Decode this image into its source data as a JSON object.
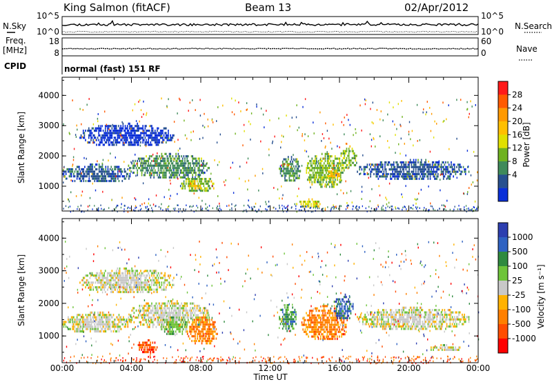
{
  "header": {
    "station": "King Salmon (fitACF)",
    "beam": "Beam 13",
    "date": "02/Apr/2012"
  },
  "left_labels": {
    "nsky": "N.Sky",
    "freq_line1": "Freq.",
    "freq_line2": "[MHz]",
    "cpid": "CPID"
  },
  "right_labels": {
    "nsearch": "N.Search",
    "nave": "Nave"
  },
  "cpid_text": "normal (fast) 151 RF",
  "colors": {
    "scatter_blue": "#1f3fd0",
    "trace": "#000000"
  },
  "chart_data": [
    {
      "type": "line",
      "name": "noise-panel",
      "left_ticks": [
        "10^5",
        "10^0"
      ],
      "right_ticks": [
        "10^5",
        "10^0"
      ],
      "x_range": [
        0,
        24
      ],
      "sky_level": 0.55,
      "search_level": 0.15
    },
    {
      "type": "line",
      "name": "frequency-panel",
      "left_ticks": [
        "18",
        "8"
      ],
      "right_ticks": [
        "60",
        "0"
      ],
      "x_range": [
        0,
        24
      ],
      "freq_level": 0.4
    },
    {
      "type": "heatmap",
      "name": "power-panel",
      "ylabel": "Slant Range [km]",
      "ylim": [
        180,
        4600
      ],
      "yticks": [
        "1000",
        "2000",
        "3000",
        "4000"
      ],
      "ytick_values": [
        1000,
        2000,
        3000,
        4000
      ],
      "xlim": [
        0,
        24
      ],
      "colorbar_label": "Power [dB]",
      "colorbar_ticks": [
        "28",
        "24",
        "20",
        "16",
        "12",
        "8",
        "4"
      ],
      "colorbar_colors": [
        "#ff1a1a",
        "#ff5a00",
        "#ff9900",
        "#ffbf00",
        "#e0e000",
        "#6fb21f",
        "#3f8a5a",
        "#27508f",
        "#0a2fd8"
      ],
      "regions": [
        {
          "x0": 0.0,
          "x1": 4.0,
          "y0": 1100,
          "y1": 1750,
          "c": 7
        },
        {
          "x0": 3.8,
          "x1": 8.5,
          "y0": 1250,
          "y1": 2100,
          "c": 6
        },
        {
          "x0": 6.8,
          "x1": 8.8,
          "y0": 800,
          "y1": 1350,
          "c": 5
        },
        {
          "x0": 7.3,
          "x1": 8.0,
          "y0": 900,
          "y1": 1200,
          "c": 3
        },
        {
          "x0": 12.5,
          "x1": 13.8,
          "y0": 1150,
          "y1": 2000,
          "c": 6
        },
        {
          "x0": 14.0,
          "x1": 16.3,
          "y0": 950,
          "y1": 2100,
          "c": 5
        },
        {
          "x0": 15.2,
          "x1": 16.0,
          "y0": 1200,
          "y1": 1600,
          "c": 3
        },
        {
          "x0": 16.0,
          "x1": 17.0,
          "y0": 1600,
          "y1": 2350,
          "c": 5
        },
        {
          "x0": 17.0,
          "x1": 23.5,
          "y0": 1200,
          "y1": 1900,
          "c": 7
        },
        {
          "x0": 1.0,
          "x1": 6.5,
          "y0": 2300,
          "y1": 3100,
          "c": 8
        },
        {
          "x0": 13.5,
          "x1": 15.0,
          "y0": 300,
          "y1": 600,
          "c": 4
        }
      ],
      "xticks": [
        "00:00",
        "04:00",
        "08:00",
        "12:00",
        "16:00",
        "20:00",
        "00:00"
      ]
    },
    {
      "type": "heatmap",
      "name": "velocity-panel",
      "ylabel": "Slant Range [km]",
      "ylim": [
        180,
        4600
      ],
      "yticks": [
        "1000",
        "2000",
        "3000",
        "4000"
      ],
      "ytick_values": [
        1000,
        2000,
        3000,
        4000
      ],
      "xlim": [
        0,
        24
      ],
      "colorbar_label": "Velocity [m s⁻¹]",
      "colorbar_ticks": [
        "1000",
        "500",
        "100",
        "25",
        "-25",
        "-100",
        "-500",
        "-1000"
      ],
      "colorbar_colors": [
        "#2d3fb0",
        "#2f62c2",
        "#2f8a3f",
        "#6ec43a",
        "#c8c8c8",
        "#ffb200",
        "#ff8000",
        "#ff4d00",
        "#ff0000"
      ],
      "regions": [
        {
          "x0": 0.0,
          "x1": 4.0,
          "y0": 1100,
          "y1": 1750,
          "c": 4
        },
        {
          "x0": 3.8,
          "x1": 8.5,
          "y0": 1250,
          "y1": 2100,
          "c": 4
        },
        {
          "x0": 5.5,
          "x1": 7.3,
          "y0": 1050,
          "y1": 1600,
          "c": 3
        },
        {
          "x0": 7.2,
          "x1": 9.0,
          "y0": 750,
          "y1": 1600,
          "c": 6
        },
        {
          "x0": 4.3,
          "x1": 5.5,
          "y0": 500,
          "y1": 900,
          "c": 7
        },
        {
          "x0": 12.5,
          "x1": 13.5,
          "y0": 1150,
          "y1": 2050,
          "c": 2
        },
        {
          "x0": 13.8,
          "x1": 16.5,
          "y0": 850,
          "y1": 1950,
          "c": 6
        },
        {
          "x0": 15.6,
          "x1": 16.8,
          "y0": 1500,
          "y1": 2300,
          "c": 1
        },
        {
          "x0": 17.0,
          "x1": 23.5,
          "y0": 1200,
          "y1": 1900,
          "c": 4
        },
        {
          "x0": 1.0,
          "x1": 6.5,
          "y0": 2300,
          "y1": 3100,
          "c": 4
        },
        {
          "x0": 21.0,
          "x1": 23.0,
          "y0": 550,
          "y1": 750,
          "c": 4
        }
      ],
      "xticks": [
        "00:00",
        "04:00",
        "08:00",
        "12:00",
        "16:00",
        "20:00",
        "00:00"
      ],
      "xlabel": "Time UT"
    }
  ]
}
